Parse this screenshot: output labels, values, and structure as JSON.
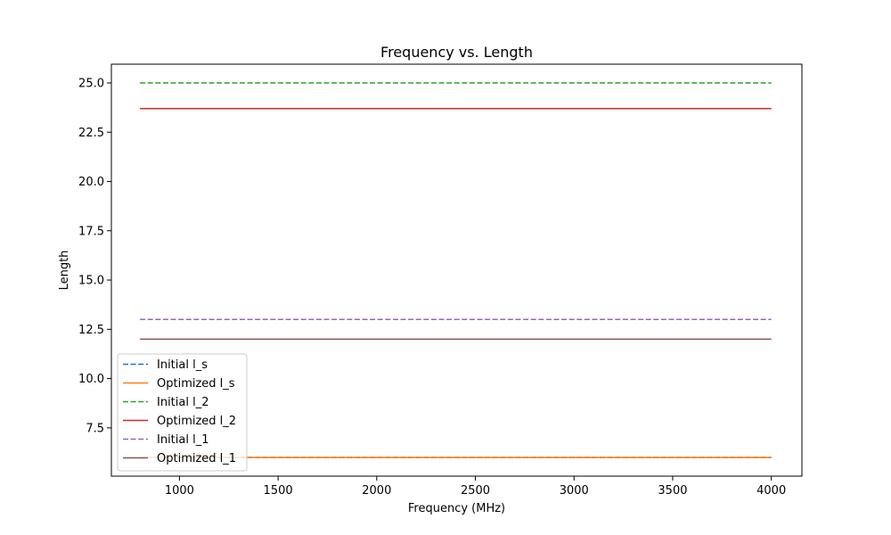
{
  "chart_data": {
    "type": "line",
    "title": "Frequency vs. Length",
    "xlabel": "Frequency (MHz)",
    "ylabel": "Length",
    "xlim": [
      655,
      4155
    ],
    "ylim": [
      5.05,
      25.95
    ],
    "x_ticks": [
      1000,
      1500,
      2000,
      2500,
      3000,
      3500,
      4000
    ],
    "x_tick_labels": [
      "1000",
      "1500",
      "2000",
      "2500",
      "3000",
      "3500",
      "4000"
    ],
    "y_ticks": [
      7.5,
      10.0,
      12.5,
      15.0,
      17.5,
      20.0,
      22.5,
      25.0
    ],
    "y_tick_labels": [
      "7.5",
      "10.0",
      "12.5",
      "15.0",
      "17.5",
      "20.0",
      "22.5",
      "25.0"
    ],
    "grid": false,
    "legend_position": "lower-left",
    "series": [
      {
        "name": "Initial l_s",
        "color": "#1f77b4",
        "dash": true,
        "x": [
          800,
          4000
        ],
        "y": [
          6.0,
          6.0
        ]
      },
      {
        "name": "Optimized l_s",
        "color": "#ff7f0e",
        "dash": false,
        "x": [
          800,
          4000
        ],
        "y": [
          6.0,
          6.0
        ]
      },
      {
        "name": "Initial l_2",
        "color": "#2ca02c",
        "dash": true,
        "x": [
          800,
          4000
        ],
        "y": [
          25.0,
          25.0
        ]
      },
      {
        "name": "Optimized l_2",
        "color": "#d62728",
        "dash": false,
        "x": [
          800,
          4000
        ],
        "y": [
          23.7,
          23.7
        ]
      },
      {
        "name": "Initial l_1",
        "color": "#9467bd",
        "dash": true,
        "x": [
          800,
          4000
        ],
        "y": [
          13.0,
          13.0
        ]
      },
      {
        "name": "Optimized l_1",
        "color": "#8c564b",
        "dash": false,
        "x": [
          800,
          4000
        ],
        "y": [
          12.0,
          12.0
        ]
      }
    ]
  }
}
